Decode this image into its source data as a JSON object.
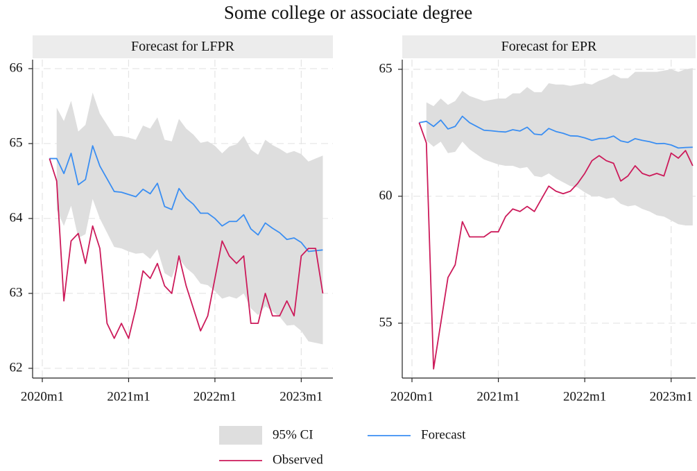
{
  "title": "Some college or associate degree",
  "chart_data": [
    {
      "type": "line",
      "title": "Forecast for LFPR",
      "x": [
        721,
        722,
        723,
        724,
        725,
        726,
        727,
        728,
        729,
        730,
        731,
        732,
        733,
        734,
        735,
        736,
        737,
        738,
        739,
        740,
        741,
        742,
        743,
        744,
        745,
        746,
        747,
        748,
        749,
        750,
        751,
        752,
        753,
        754,
        755,
        756,
        757,
        758,
        759
      ],
      "xlim": [
        718.65,
        760.4
      ],
      "xticks": [
        {
          "value": 720,
          "label": "2020m1"
        },
        {
          "value": 732,
          "label": "2021m1"
        },
        {
          "value": 744,
          "label": "2022m1"
        },
        {
          "value": 756,
          "label": "2023m1"
        }
      ],
      "ylim": [
        61.87,
        66.12
      ],
      "yticks": [
        62,
        63,
        64,
        65,
        66
      ],
      "grid": true,
      "series": [
        {
          "name": "95% CI",
          "color": "#dedede",
          "lower": [
            null,
            64.12,
            63.9,
            64.17,
            63.74,
            63.79,
            64.26,
            64.0,
            63.81,
            63.62,
            63.6,
            63.56,
            63.53,
            63.54,
            63.46,
            63.59,
            63.27,
            63.21,
            63.47,
            63.34,
            63.26,
            63.13,
            63.11,
            63.03,
            62.93,
            62.96,
            62.93,
            63.0,
            62.8,
            62.71,
            62.83,
            62.76,
            62.69,
            62.57,
            62.58,
            62.5,
            62.36,
            62.34,
            62.32
          ],
          "upper": [
            null,
            65.48,
            65.3,
            65.57,
            65.16,
            65.25,
            65.68,
            65.4,
            65.25,
            65.1,
            65.1,
            65.08,
            65.05,
            65.24,
            65.2,
            65.35,
            65.05,
            65.03,
            65.33,
            65.2,
            65.12,
            65.01,
            65.03,
            64.97,
            64.87,
            64.96,
            64.99,
            65.1,
            64.92,
            64.85,
            65.05,
            64.98,
            64.93,
            64.87,
            64.9,
            64.86,
            64.76,
            64.8,
            64.84
          ]
        },
        {
          "name": "Forecast",
          "color": "#3a8ef2",
          "values": [
            64.8,
            64.8,
            64.6,
            64.87,
            64.45,
            64.52,
            64.97,
            64.7,
            64.53,
            64.36,
            64.35,
            64.32,
            64.29,
            64.39,
            64.33,
            64.47,
            64.16,
            64.12,
            64.4,
            64.27,
            64.19,
            64.07,
            64.07,
            64.0,
            63.9,
            63.96,
            63.96,
            64.05,
            63.86,
            63.78,
            63.94,
            63.87,
            63.81,
            63.72,
            63.74,
            63.68,
            63.56,
            63.57,
            63.58
          ]
        },
        {
          "name": "Observed",
          "color": "#cc1a5a",
          "values": [
            64.8,
            64.5,
            62.9,
            63.7,
            63.8,
            63.4,
            63.9,
            63.6,
            62.6,
            62.4,
            62.6,
            62.4,
            62.8,
            63.3,
            63.2,
            63.4,
            63.1,
            63.0,
            63.5,
            63.1,
            62.8,
            62.5,
            62.7,
            63.2,
            63.7,
            63.5,
            63.4,
            63.5,
            62.6,
            62.6,
            63.0,
            62.7,
            62.7,
            62.9,
            62.7,
            63.5,
            63.6,
            63.6,
            63.0
          ]
        }
      ]
    },
    {
      "type": "line",
      "title": "Forecast for EPR",
      "x": [
        721,
        722,
        723,
        724,
        725,
        726,
        727,
        728,
        729,
        730,
        731,
        732,
        733,
        734,
        735,
        736,
        737,
        738,
        739,
        740,
        741,
        742,
        743,
        744,
        745,
        746,
        747,
        748,
        749,
        750,
        751,
        752,
        753,
        754,
        755,
        756,
        757,
        758,
        759
      ],
      "xlim": [
        718.65,
        759.4
      ],
      "xticks": [
        {
          "value": 720,
          "label": "2020m1"
        },
        {
          "value": 732,
          "label": "2021m1"
        },
        {
          "value": 744,
          "label": "2022m1"
        },
        {
          "value": 756,
          "label": "2023m1"
        }
      ],
      "ylim": [
        52.84,
        65.38
      ],
      "yticks": [
        55,
        60,
        65
      ],
      "grid": true,
      "series": [
        {
          "color": "#dedede",
          "lower": [
            null,
            62.2,
            61.95,
            62.15,
            61.7,
            61.75,
            62.15,
            61.85,
            61.65,
            61.45,
            61.35,
            61.25,
            61.2,
            61.2,
            61.1,
            61.15,
            60.8,
            60.75,
            60.9,
            60.7,
            60.55,
            60.4,
            60.35,
            60.15,
            60.0,
            60.0,
            59.9,
            59.95,
            59.7,
            59.6,
            59.65,
            59.5,
            59.4,
            59.25,
            59.2,
            59.05,
            58.9,
            58.85,
            58.85
          ],
          "upper": [
            null,
            63.7,
            63.55,
            63.85,
            63.6,
            63.75,
            64.15,
            63.95,
            63.85,
            63.75,
            63.8,
            63.85,
            63.85,
            64.05,
            64.05,
            64.3,
            64.1,
            64.1,
            64.45,
            64.4,
            64.4,
            64.35,
            64.4,
            64.45,
            64.4,
            64.55,
            64.65,
            64.8,
            64.65,
            64.65,
            64.9,
            64.9,
            64.9,
            64.9,
            64.95,
            65.0,
            64.9,
            65.0,
            65.05
          ]
        },
        {
          "color": "#3a8ef2",
          "values": [
            62.9,
            62.95,
            62.75,
            63.0,
            62.65,
            62.75,
            63.15,
            62.9,
            62.75,
            62.6,
            62.58,
            62.55,
            62.53,
            62.62,
            62.57,
            62.72,
            62.45,
            62.42,
            62.67,
            62.55,
            62.48,
            62.38,
            62.37,
            62.3,
            62.2,
            62.27,
            62.28,
            62.37,
            62.18,
            62.12,
            62.27,
            62.2,
            62.15,
            62.07,
            62.08,
            62.02,
            61.9,
            61.92,
            61.93
          ]
        },
        {
          "color": "#cc1a5a",
          "values": [
            62.9,
            62.1,
            53.2,
            55.0,
            56.8,
            57.3,
            59.0,
            58.4,
            58.4,
            58.4,
            58.6,
            58.6,
            59.2,
            59.5,
            59.4,
            59.6,
            59.4,
            59.9,
            60.4,
            60.2,
            60.1,
            60.2,
            60.5,
            60.9,
            61.4,
            61.6,
            61.4,
            61.3,
            60.6,
            60.8,
            61.2,
            60.9,
            60.8,
            60.9,
            60.8,
            61.7,
            61.5,
            61.8,
            61.2
          ]
        }
      ]
    }
  ]
}
